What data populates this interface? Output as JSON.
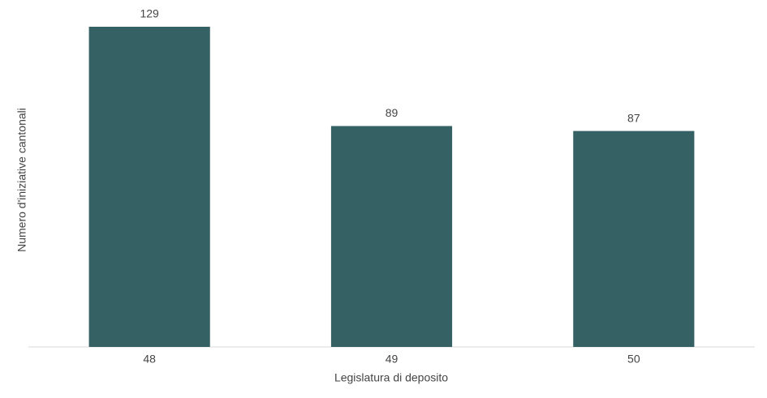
{
  "chart_data": {
    "type": "bar",
    "x_label": "Legislatura di deposito",
    "y_label": "Numero d'iniziative cantonali",
    "categories": [
      "48",
      "49",
      "50"
    ],
    "values": [
      129,
      89,
      87
    ],
    "color": "#356064"
  }
}
